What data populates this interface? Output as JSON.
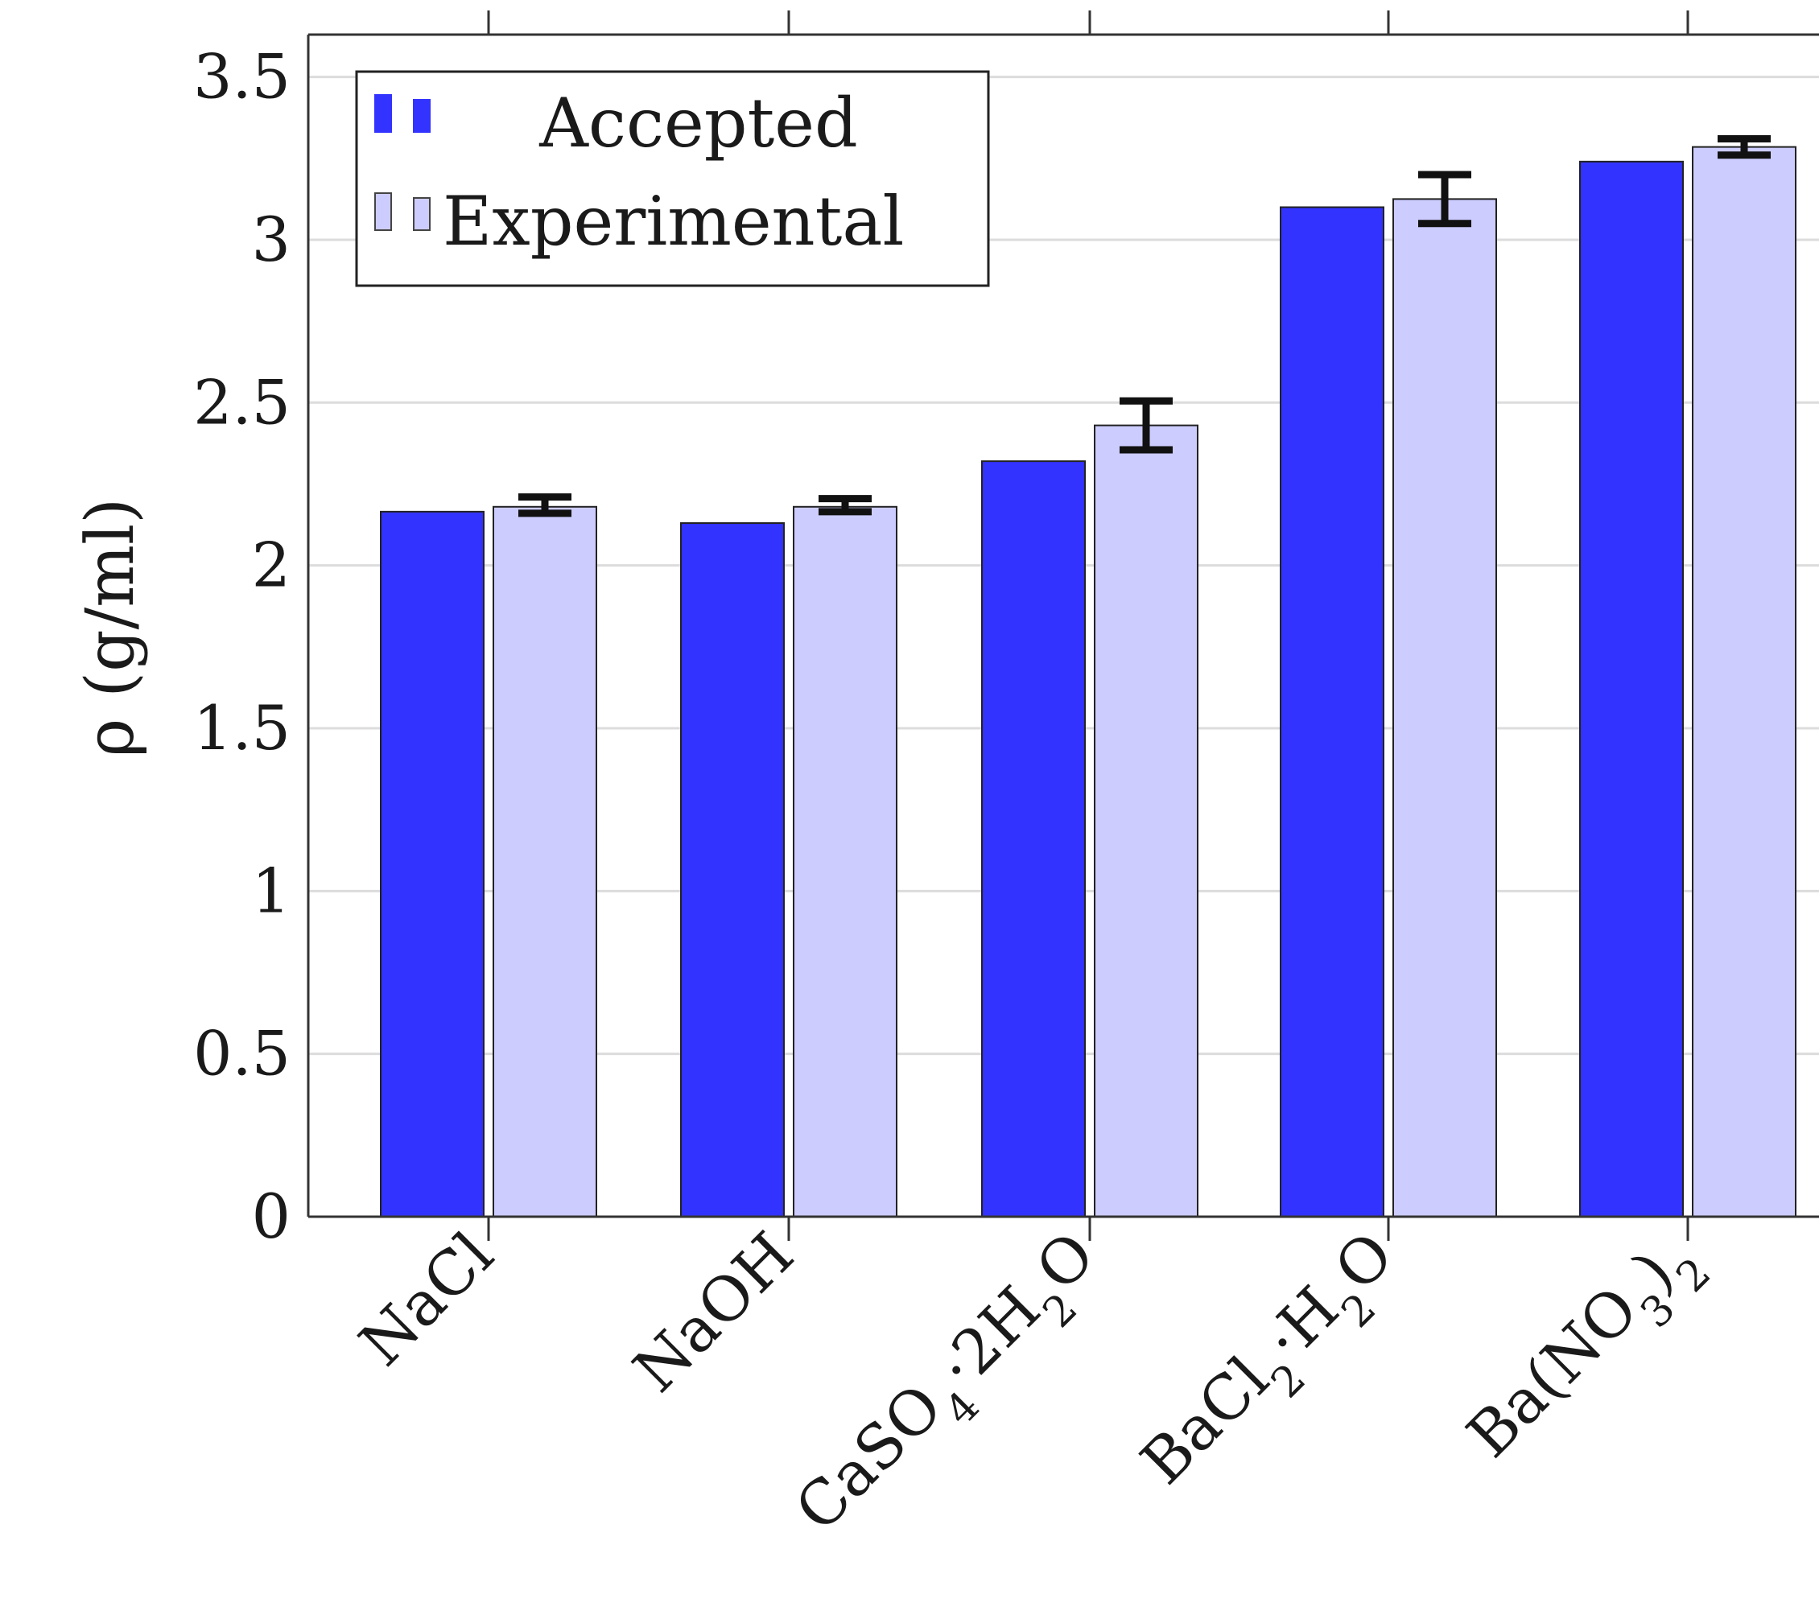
{
  "chart_data": {
    "type": "bar",
    "ylabel": "ρ (g/ml)",
    "ylim": [
      0,
      3.63
    ],
    "yticks": [
      0,
      0.5,
      1,
      1.5,
      2,
      2.5,
      3,
      3.5
    ],
    "ytick_labels": [
      "0",
      "0.5",
      "1",
      "1.5",
      "2",
      "2.5",
      "3",
      "3.5"
    ],
    "grid": true,
    "legend_position": "top-left",
    "categories": [
      {
        "label": "NaCl",
        "parts": [
          {
            "t": "NaCl"
          }
        ]
      },
      {
        "label": "NaOH",
        "parts": [
          {
            "t": "NaOH"
          }
        ]
      },
      {
        "label": "CaSO4·2H2O",
        "parts": [
          {
            "t": "CaSO"
          },
          {
            "t": "4",
            "sub": true
          },
          {
            "t": "·2H"
          },
          {
            "t": "2",
            "sub": true
          },
          {
            "t": "O"
          }
        ]
      },
      {
        "label": "BaCl2·H2O",
        "parts": [
          {
            "t": "BaCl"
          },
          {
            "t": "2",
            "sub": true
          },
          {
            "t": "·H"
          },
          {
            "t": "2",
            "sub": true
          },
          {
            "t": "O"
          }
        ]
      },
      {
        "label": "Ba(NO3)2",
        "parts": [
          {
            "t": "Ba(NO"
          },
          {
            "t": "3",
            "sub": true
          },
          {
            "t": ")"
          },
          {
            "t": "2",
            "sub": true
          }
        ]
      }
    ],
    "series": [
      {
        "name": "Accepted",
        "color": "#3333ff",
        "values": [
          2.165,
          2.13,
          2.32,
          3.1,
          3.24
        ]
      },
      {
        "name": "Experimental",
        "color": "#ccccff",
        "values": [
          2.18,
          2.18,
          2.43,
          3.125,
          3.285
        ],
        "error_low": [
          2.16,
          2.165,
          2.355,
          3.05,
          3.26
        ],
        "error_high": [
          2.21,
          2.205,
          2.505,
          3.2,
          3.31
        ]
      }
    ]
  }
}
